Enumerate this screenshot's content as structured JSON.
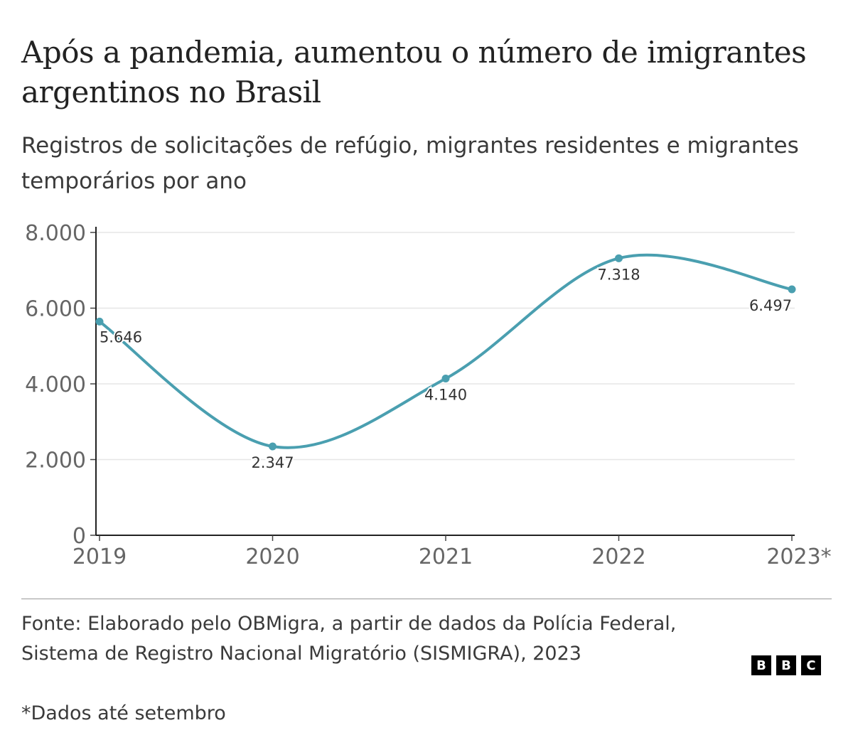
{
  "title": "Após a pandemia, aumentou o número de imigrantes argentinos no Brasil",
  "subtitle": "Registros de solicitações de refúgio, migrantes residentes e migrantes temporários por ano",
  "source": "Fonte: Elaborado pelo OBMigra, a partir de dados da Polícia Federal, Sistema de Registro Nacional Migratório (SISMIGRA), 2023",
  "note": "*Dados até setembro",
  "logo": [
    "B",
    "B",
    "C"
  ],
  "chart_data": {
    "type": "line",
    "categories": [
      "2019",
      "2020",
      "2021",
      "2022",
      "2023*"
    ],
    "values": [
      5646,
      2347,
      4140,
      7318,
      6497
    ],
    "data_labels": [
      "5.646",
      "2.347",
      "4.140",
      "7.318",
      "6.497"
    ],
    "ylim": [
      0,
      8000
    ],
    "yticks": [
      0,
      2000,
      4000,
      6000,
      8000
    ],
    "ytick_labels": [
      "0",
      "2.000",
      "4.000",
      "6.000",
      "8.000"
    ],
    "grid": true,
    "line_color": "#4a9fb0",
    "smooth": true
  }
}
